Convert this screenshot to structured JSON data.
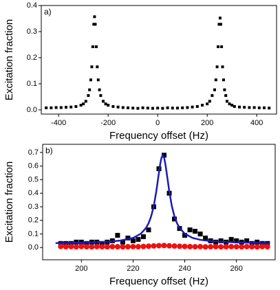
{
  "chart_data": [
    {
      "type": "scatter",
      "annotation": "a)",
      "x_label": "Frequency offset (Hz)",
      "y_label": "Excitation fraction",
      "xlim": [
        -470,
        480
      ],
      "ylim": [
        -0.016,
        0.4
      ],
      "xticks": [
        -400,
        -200,
        0,
        200,
        400
      ],
      "yticks": [
        {
          "value": 0,
          "label": "0.0"
        },
        0.1,
        0.2,
        0.3,
        0.4
      ],
      "series": [
        {
          "type": "scatter",
          "marker": "square",
          "color": "#000000",
          "x": [
            -450,
            -430,
            -410,
            -390,
            -370,
            -350,
            -330,
            -310,
            -300,
            -290,
            -280,
            -275,
            -270,
            -266,
            -262,
            -258,
            -255,
            -252,
            -248,
            -244,
            -240,
            -235,
            -230,
            -220,
            -210,
            -200,
            -180,
            -160,
            -140,
            -120,
            -100,
            -80,
            -60,
            -40,
            -20,
            0,
            20,
            40,
            60,
            80,
            100,
            120,
            140,
            160,
            180,
            200,
            210,
            220,
            230,
            235,
            240,
            244,
            248,
            252,
            255,
            258,
            262,
            266,
            270,
            275,
            280,
            290,
            300,
            310,
            330,
            350,
            370,
            390,
            410,
            430,
            450
          ],
          "values": [
            0.008,
            0.008,
            0.009,
            0.009,
            0.01,
            0.011,
            0.013,
            0.018,
            0.023,
            0.033,
            0.055,
            0.077,
            0.115,
            0.165,
            0.242,
            0.328,
            0.357,
            0.328,
            0.242,
            0.165,
            0.115,
            0.077,
            0.055,
            0.033,
            0.023,
            0.018,
            0.013,
            0.011,
            0.009,
            0.008,
            0.007,
            0.006,
            0.008,
            0.007,
            0.006,
            0.007,
            0.006,
            0.008,
            0.007,
            0.007,
            0.008,
            0.009,
            0.011,
            0.013,
            0.018,
            0.023,
            0.033,
            0.055,
            0.077,
            0.115,
            0.165,
            0.242,
            0.328,
            0.352,
            0.328,
            0.242,
            0.165,
            0.115,
            0.077,
            0.055,
            0.033,
            0.023,
            0.018,
            0.013,
            0.011,
            0.01,
            0.009,
            0.009,
            0.008,
            0.008,
            0.007
          ]
        }
      ]
    },
    {
      "type": "scatter",
      "annotation": "b)",
      "x_label": "Frequency offset (Hz)",
      "y_label": "Excitation fraction",
      "xlim": [
        185,
        275
      ],
      "ylim": [
        -0.09,
        0.76
      ],
      "xticks": [
        200,
        220,
        240,
        260
      ],
      "yticks": [
        {
          "value": 0,
          "label": "0.0"
        },
        0.1,
        0.2,
        0.3,
        0.4,
        0.5,
        0.6,
        0.7
      ],
      "series": [
        {
          "type": "scatter",
          "marker": "square",
          "color": "#000000",
          "x": [
            192,
            194,
            196,
            198,
            200,
            202,
            204,
            206,
            208,
            210,
            212,
            214,
            216,
            218,
            220,
            222,
            224,
            226,
            228,
            230,
            232,
            234,
            236,
            238,
            240,
            242,
            244,
            246,
            248,
            250,
            252,
            254,
            256,
            258,
            260,
            262,
            264,
            266,
            268,
            270,
            272
          ],
          "values": [
            0.03,
            0.03,
            0.03,
            0.04,
            0.04,
            0.03,
            0.04,
            0.04,
            0.03,
            0.04,
            0.05,
            0.09,
            0.04,
            0.07,
            0.05,
            0.06,
            0.08,
            0.13,
            0.3,
            0.58,
            0.68,
            0.4,
            0.21,
            0.14,
            0.09,
            0.13,
            0.12,
            0.1,
            0.07,
            0.05,
            0.04,
            0.05,
            0.04,
            0.06,
            0.05,
            0.04,
            0.05,
            0.03,
            0.04,
            0.03,
            0.03
          ]
        },
        {
          "type": "scatter",
          "marker": "circle",
          "color": "#ee1111",
          "x": [
            192,
            194,
            196,
            198,
            200,
            202,
            204,
            206,
            208,
            210,
            212,
            214,
            216,
            218,
            220,
            222,
            224,
            226,
            228,
            230,
            232,
            234,
            236,
            238,
            240,
            242,
            244,
            246,
            248,
            250,
            252,
            254,
            256,
            258,
            260,
            262,
            264,
            266,
            268,
            270,
            272
          ],
          "values": [
            0.008,
            0.006,
            0.007,
            0.005,
            0.008,
            0.006,
            0.005,
            0.007,
            0.006,
            0.005,
            0.007,
            0.006,
            0.005,
            0.006,
            0.007,
            0.006,
            0.008,
            0.01,
            0.012,
            0.014,
            0.015,
            0.013,
            0.011,
            0.009,
            0.008,
            0.007,
            0.006,
            0.007,
            0.005,
            0.006,
            0.007,
            0.005,
            0.006,
            0.007,
            0.006,
            0.005,
            0.007,
            0.006,
            0.005,
            0.007,
            0.006
          ]
        },
        {
          "type": "line",
          "color": "#1a1ab8",
          "x": [
            190,
            200,
            210,
            215,
            220,
            223,
            225,
            226,
            227,
            228,
            229,
            230,
            230.5,
            231,
            231.5,
            232,
            232.5,
            233,
            234,
            235,
            236,
            237,
            238,
            240,
            243,
            246,
            250,
            260,
            273
          ],
          "values": [
            0.033,
            0.036,
            0.042,
            0.051,
            0.071,
            0.102,
            0.144,
            0.179,
            0.23,
            0.305,
            0.415,
            0.55,
            0.615,
            0.662,
            0.68,
            0.662,
            0.615,
            0.55,
            0.415,
            0.305,
            0.23,
            0.179,
            0.144,
            0.102,
            0.071,
            0.057,
            0.047,
            0.038,
            0.033
          ]
        }
      ]
    }
  ]
}
